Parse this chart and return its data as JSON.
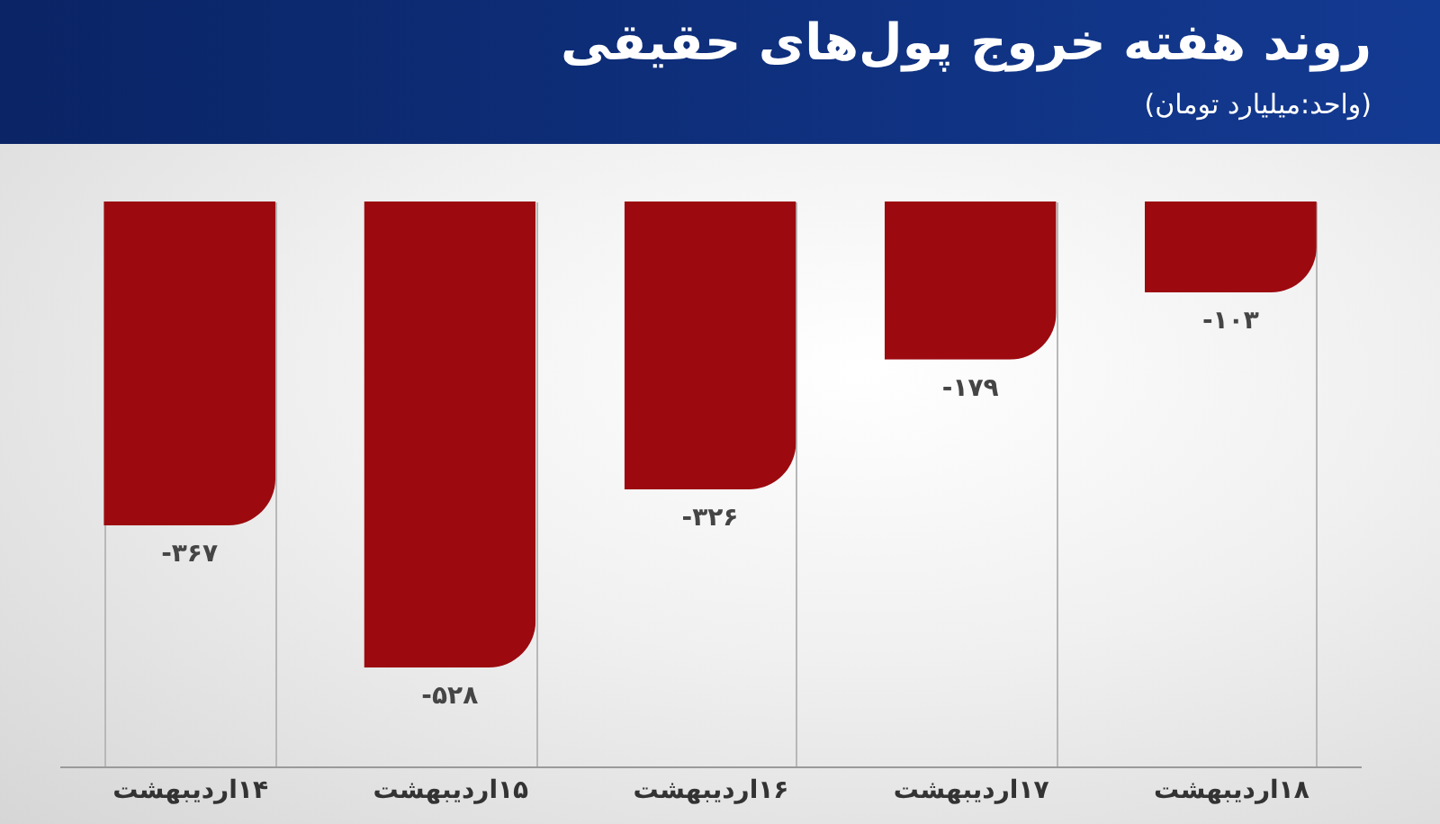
{
  "chart_data": {
    "type": "bar",
    "title": "روند هفته خروج پول‌های حقیقی",
    "subtitle": "(واحد:میلیارد تومان)",
    "categories": [
      "۱۴اردیبهشت",
      "۱۵اردیبهشت",
      "۱۶اردیبهشت",
      "۱۷اردیبهشت",
      "۱۸اردیبهشت"
    ],
    "values": [
      -367,
      -528,
      -326,
      -179,
      -103
    ],
    "value_labels": [
      "-۳۶۷",
      "-۵۲۸",
      "-۳۲۶",
      "-۱۷۹",
      "-۱۰۳"
    ],
    "color": "#9c0a0f",
    "ylim": [
      -640,
      0
    ],
    "grid": "x",
    "tick_labels": "x"
  }
}
